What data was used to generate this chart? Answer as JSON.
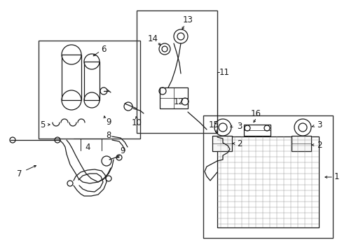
{
  "bg_color": "#ffffff",
  "line_color": "#1a1a1a",
  "box_color": "#333333",
  "fig_width": 4.89,
  "fig_height": 3.6,
  "dpi": 100,
  "label_fs": 8.5
}
